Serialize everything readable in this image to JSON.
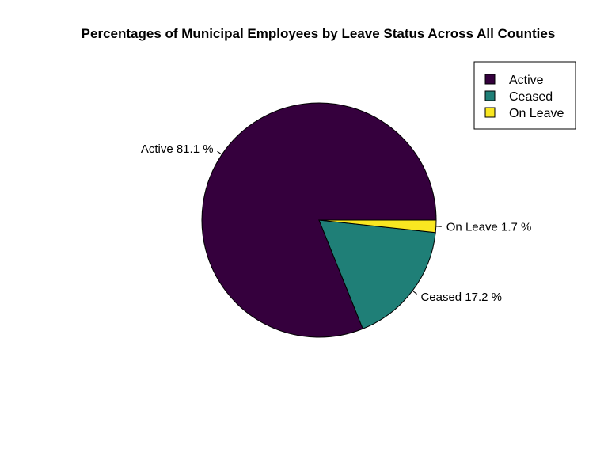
{
  "chart_data": {
    "type": "pie",
    "title": "Percentages of Municipal Employees by Leave Status Across All Counties",
    "categories": [
      "Active",
      "Ceased",
      "On Leave"
    ],
    "values": [
      81.1,
      17.2,
      1.7
    ],
    "slice_labels": [
      "Active 81.1 %",
      "Ceased 17.2 %",
      "On Leave 1.7 %"
    ],
    "colors": [
      "#35003D",
      "#1F7F77",
      "#F9E721"
    ],
    "legend": {
      "placement": "top-right",
      "entries": [
        "Active",
        "Ceased",
        "On Leave"
      ]
    },
    "start_angle": "3 o'clock",
    "direction": "counter-clockwise"
  }
}
